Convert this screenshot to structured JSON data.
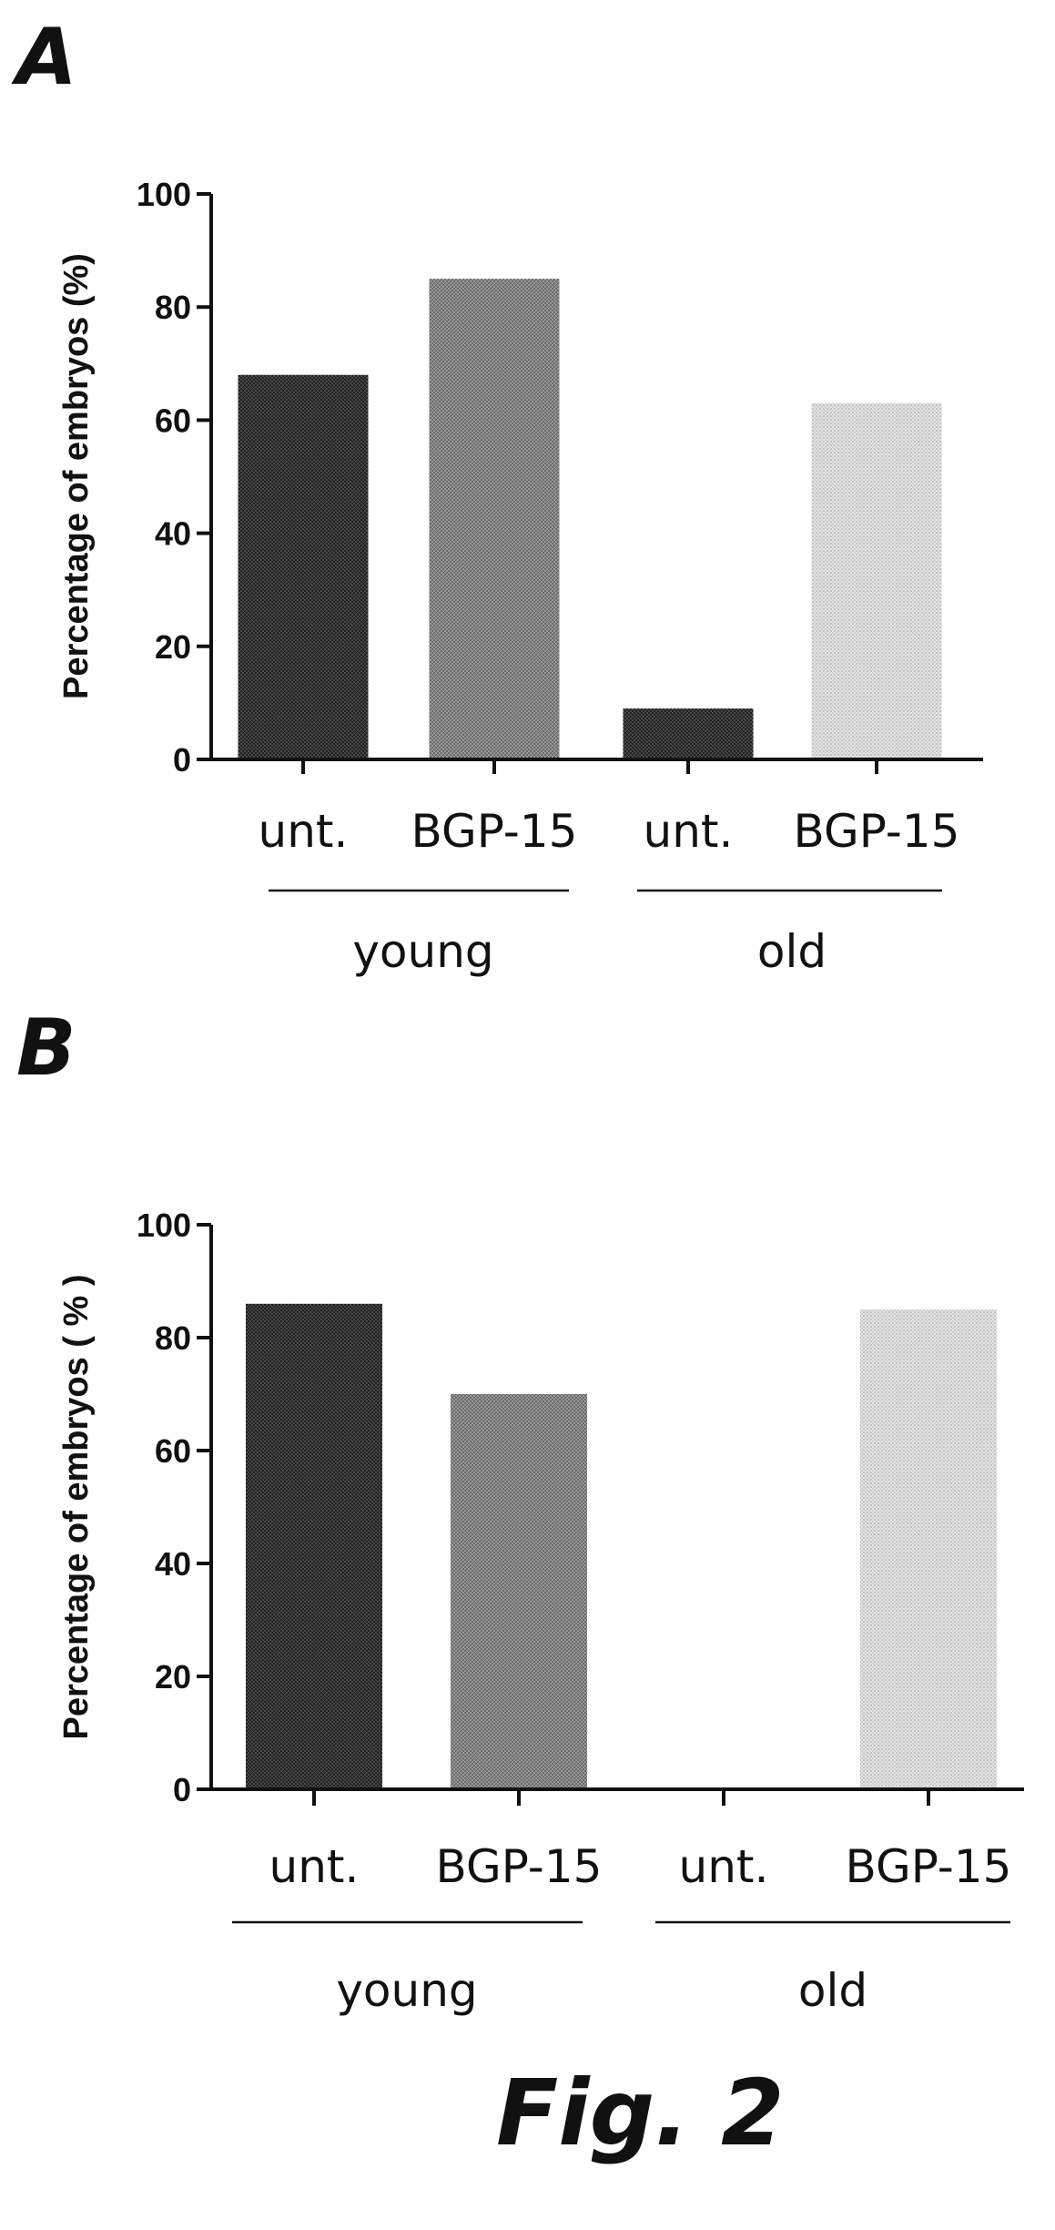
{
  "figure_caption": "Fig. 2",
  "panels": [
    {
      "letter": "A"
    },
    {
      "letter": "B"
    }
  ],
  "chart_data": [
    {
      "type": "bar",
      "panel": "A",
      "title": "",
      "xlabel": "",
      "ylabel": "Percentage of embryos (%)",
      "ylim": [
        0,
        100
      ],
      "yticks": [
        "0",
        "20",
        "40",
        "60",
        "80",
        "100"
      ],
      "categories": [
        "unt.",
        "BGP-15",
        "unt.",
        "BGP-15"
      ],
      "groups": [
        {
          "label": "young",
          "categories": [
            0,
            1
          ]
        },
        {
          "label": "old",
          "categories": [
            2,
            3
          ]
        }
      ],
      "values": [
        68,
        85,
        9,
        63
      ],
      "bar_fills": [
        "dark-hatch",
        "medium-hatch",
        "dark-hatch",
        "light-dots"
      ],
      "grid": false
    },
    {
      "type": "bar",
      "panel": "B",
      "title": "",
      "xlabel": "",
      "ylabel": "Percentage of embryos ( % )",
      "ylim": [
        0,
        100
      ],
      "yticks": [
        "0",
        "20",
        "40",
        "60",
        "80",
        "100"
      ],
      "categories": [
        "unt.",
        "BGP-15",
        "unt.",
        "BGP-15"
      ],
      "groups": [
        {
          "label": "young",
          "categories": [
            0,
            1
          ]
        },
        {
          "label": "old",
          "categories": [
            2,
            3
          ]
        }
      ],
      "values": [
        86,
        70,
        0,
        85
      ],
      "bar_fills": [
        "dark-hatch",
        "medium-hatch",
        "dark-hatch",
        "light-dots"
      ],
      "grid": false
    }
  ]
}
